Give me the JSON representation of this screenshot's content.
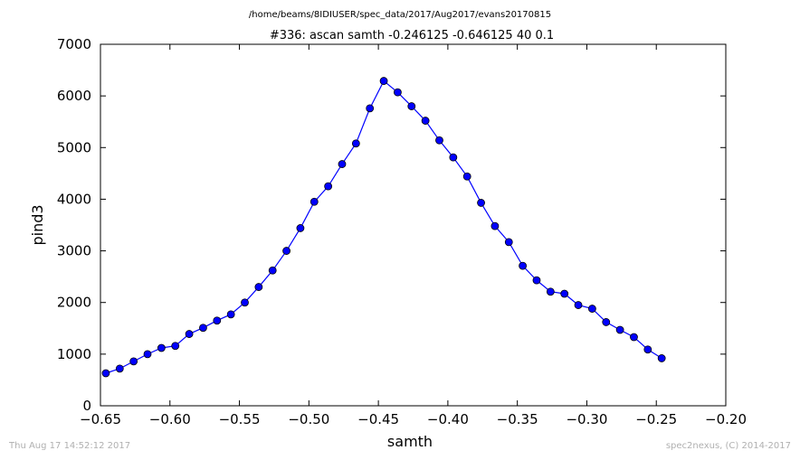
{
  "header": {
    "path": "/home/beams/8IDIUSER/spec_data/2017/Aug2017/evans20170815"
  },
  "footer": {
    "timestamp": "Thu Aug 17 14:52:12 2017",
    "credit": "spec2nexus, (C) 2014-2017"
  },
  "colors": {
    "series": "#0000ff",
    "marker": "#0000ff",
    "axes": "#000000"
  },
  "chart_data": {
    "type": "line",
    "title": "#336: ascan  samth -0.246125 -0.646125  40 0.1",
    "xlabel": "samth",
    "ylabel": "pind3",
    "xlim": [
      -0.65,
      -0.2
    ],
    "ylim": [
      0,
      7000
    ],
    "xticks": [
      -0.65,
      -0.6,
      -0.55,
      -0.5,
      -0.45,
      -0.4,
      -0.35,
      -0.3,
      -0.25,
      -0.2
    ],
    "xtick_labels": [
      "−0.65",
      "−0.60",
      "−0.55",
      "−0.50",
      "−0.45",
      "−0.40",
      "−0.35",
      "−0.30",
      "−0.25",
      "−0.20"
    ],
    "yticks": [
      0,
      1000,
      2000,
      3000,
      4000,
      5000,
      6000,
      7000
    ],
    "ytick_labels": [
      "0",
      "1000",
      "2000",
      "3000",
      "4000",
      "5000",
      "6000",
      "7000"
    ],
    "grid": false,
    "x": [
      -0.646125,
      -0.636125,
      -0.626125,
      -0.616125,
      -0.606125,
      -0.596125,
      -0.586125,
      -0.576125,
      -0.566125,
      -0.556125,
      -0.546125,
      -0.536125,
      -0.526125,
      -0.516125,
      -0.506125,
      -0.496125,
      -0.486125,
      -0.476125,
      -0.466125,
      -0.456125,
      -0.446125,
      -0.436125,
      -0.426125,
      -0.416125,
      -0.406125,
      -0.396125,
      -0.386125,
      -0.376125,
      -0.366125,
      -0.356125,
      -0.346125,
      -0.336125,
      -0.326125,
      -0.316125,
      -0.306125,
      -0.296125,
      -0.286125,
      -0.276125,
      -0.266125,
      -0.256125,
      -0.246125
    ],
    "y": [
      630,
      720,
      860,
      1000,
      1120,
      1160,
      1390,
      1510,
      1650,
      1770,
      2000,
      2300,
      2620,
      3000,
      3440,
      3950,
      4250,
      4680,
      5080,
      5760,
      6290,
      6070,
      5800,
      5520,
      5140,
      4810,
      4440,
      3930,
      3480,
      3170,
      2710,
      2430,
      2210,
      2170,
      1950,
      1880,
      1620,
      1470,
      1330,
      1090,
      920
    ]
  }
}
